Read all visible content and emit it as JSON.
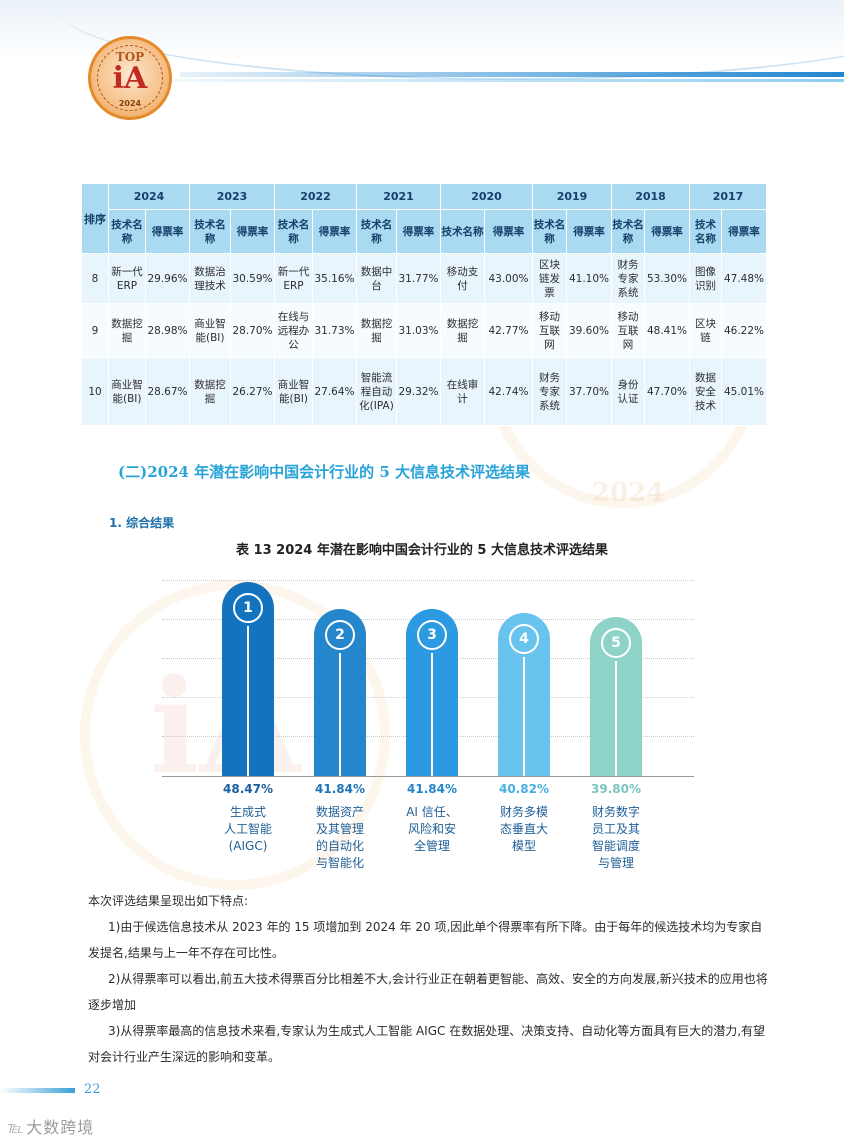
{
  "logo": {
    "top_text": "TOP",
    "big_text": "iA",
    "year": "2024"
  },
  "table": {
    "rank_header": "排序",
    "years": [
      "2024",
      "2023",
      "2022",
      "2021",
      "2020",
      "2019",
      "2018",
      "2017"
    ],
    "sub_tech": "技术名称",
    "sub_rate": "得票率",
    "rows": [
      {
        "rank": "8",
        "cells": [
          [
            "新一代ERP",
            "29.96%"
          ],
          [
            "数据治理技术",
            "30.59%"
          ],
          [
            "新一代ERP",
            "35.16%"
          ],
          [
            "数据中台",
            "31.77%"
          ],
          [
            "移动支付",
            "43.00%"
          ],
          [
            "区块链发票",
            "41.10%"
          ],
          [
            "财务专家系统",
            "53.30%"
          ],
          [
            "图像识别",
            "47.48%"
          ]
        ]
      },
      {
        "rank": "9",
        "cells": [
          [
            "数据挖掘",
            "28.98%"
          ],
          [
            "商业智能(BI)",
            "28.70%"
          ],
          [
            "在线与远程办公",
            "31.73%"
          ],
          [
            "数据挖掘",
            "31.03%"
          ],
          [
            "数据挖掘",
            "42.77%"
          ],
          [
            "移动互联网",
            "39.60%"
          ],
          [
            "移动互联网",
            "48.41%"
          ],
          [
            "区块链",
            "46.22%"
          ]
        ]
      },
      {
        "rank": "10",
        "cells": [
          [
            "商业智能(BI)",
            "28.67%"
          ],
          [
            "数据挖掘",
            "26.27%"
          ],
          [
            "商业智能(BI)",
            "27.64%"
          ],
          [
            "智能流程自动化(IPA)",
            "29.32%"
          ],
          [
            "在线审计",
            "42.74%"
          ],
          [
            "财务专家系统",
            "37.70%"
          ],
          [
            "身份认证",
            "47.70%"
          ],
          [
            "数据安全技术",
            "45.01%"
          ]
        ]
      }
    ]
  },
  "section_title": "(二)2024 年潜在影响中国会计行业的 5 大信息技术评选结果",
  "subsection_title": "1. 综合结果",
  "table_title": "表 13 2024 年潜在影响中国会计行业的 5 大信息技术评选结果",
  "chart_data": {
    "type": "bar",
    "title": "表 13 2024 年潜在影响中国会计行业的 5 大信息技术评选结果",
    "categories": [
      "生成式人工智能(AIGC)",
      "数据资产及其管理的自动化与智能化",
      "AI 信任、风险和安全管理",
      "财务多模态垂直大模型",
      "财务数字员工及其智能调度与管理"
    ],
    "ranks": [
      "1",
      "2",
      "3",
      "4",
      "5"
    ],
    "values": [
      48.47,
      41.84,
      41.84,
      40.82,
      39.8
    ],
    "value_labels": [
      "48.47%",
      "41.84%",
      "41.84%",
      "40.82%",
      "39.80%"
    ],
    "category_lines": [
      [
        "生成式",
        "人工智能",
        "(AIGC)"
      ],
      [
        "数据资产",
        "及其管理",
        "的自动化",
        "与智能化"
      ],
      [
        "AI 信任、",
        "风险和安",
        "全管理"
      ],
      [
        "财务多模",
        "态垂直大",
        "模型"
      ],
      [
        "财务数字",
        "员工及其",
        "智能调度",
        "与管理"
      ]
    ],
    "colors": [
      "#1473bf",
      "#2586cc",
      "#2b9ae0",
      "#69c3ef",
      "#8fd3c8"
    ],
    "label_colors": [
      "#1a5fa0",
      "#1d74b8",
      "#2385cc",
      "#45aee3",
      "#7ac6bd"
    ],
    "ylim": [
      0,
      50
    ],
    "grid": true
  },
  "body": {
    "intro": "本次评选结果呈现出如下特点:",
    "points": [
      "1)由于候选信息技术从 2023 年的 15 项增加到 2024 年 20 项,因此单个得票率有所下降。由于每年的候选技术均为专家自发提名,结果与上一年不存在可比性。",
      "2)从得票率可以看出,前五大技术得票百分比相差不大,会计行业正在朝着更智能、高效、安全的方向发展,新兴技术的应用也将逐步增加",
      "3)从得票率最高的信息技术来看,专家认为生成式人工智能 AIGC 在数据处理、决策支持、自动化等方面具有巨大的潜力,有望对会计行业产生深远的影响和变革。"
    ]
  },
  "page_number": "22",
  "brand": "大数跨境"
}
